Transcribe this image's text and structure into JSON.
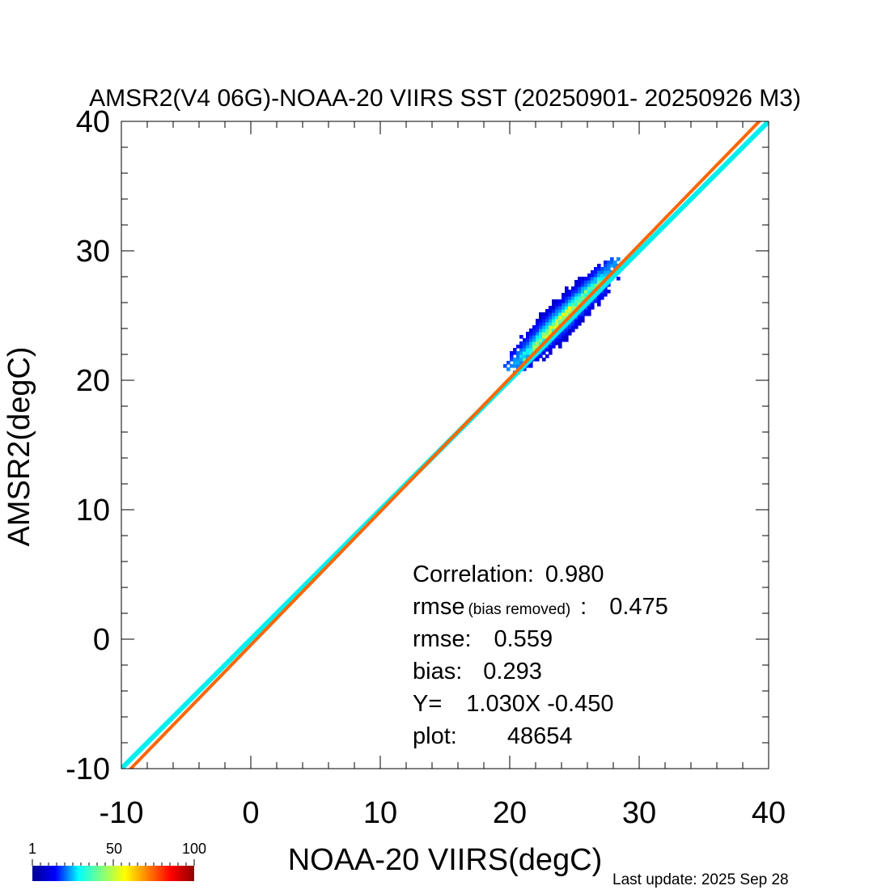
{
  "chart_data": {
    "type": "scatter",
    "title": "AMSR2(V4 06G)-NOAA-20 VIIRS SST (20250901- 20250926 M3)",
    "xlabel": "NOAA-20 VIIRS(degC)",
    "ylabel": "AMSR2(degC)",
    "xlim": [
      -10,
      40
    ],
    "ylim": [
      -10,
      40
    ],
    "xticks": [
      "-10",
      "0",
      "10",
      "20",
      "30",
      "40"
    ],
    "yticks": [
      "-10",
      "0",
      "10",
      "20",
      "30",
      "40"
    ],
    "density_cloud": {
      "x_range": [
        18.5,
        29.5
      ],
      "y_range": [
        19.0,
        30.0
      ],
      "center": [
        24.2,
        24.6
      ]
    },
    "lines": [
      {
        "kind": "one-to-one",
        "slope": 1.0,
        "intercept": 0.0,
        "color": "#00eeee"
      },
      {
        "kind": "regression",
        "slope": 1.03,
        "intercept": -0.45,
        "color": "#ff6600"
      }
    ],
    "stats": {
      "correlation_label": "Correlation:",
      "correlation": "0.980",
      "rmse_br_label": "rmse",
      "rmse_br_note": "(bias removed)",
      "rmse_br_sep": ":",
      "rmse_br": "0.475",
      "rmse_label": "rmse:",
      "rmse": "0.559",
      "bias_label": "bias:",
      "bias": "0.293",
      "fit_label": "Y=",
      "fit": "1.030X -0.450",
      "plot_label": "plot:",
      "plot_count": "48654"
    },
    "colorbar": {
      "ticks": [
        "1",
        "50",
        "100"
      ],
      "colors": [
        "#00008f",
        "#0000ff",
        "#00ffff",
        "#7fff7f",
        "#ffff00",
        "#ff7f00",
        "#ff0000",
        "#8f0000"
      ]
    }
  },
  "footer": {
    "last_update": "Last update: 2025 Sep 28"
  }
}
